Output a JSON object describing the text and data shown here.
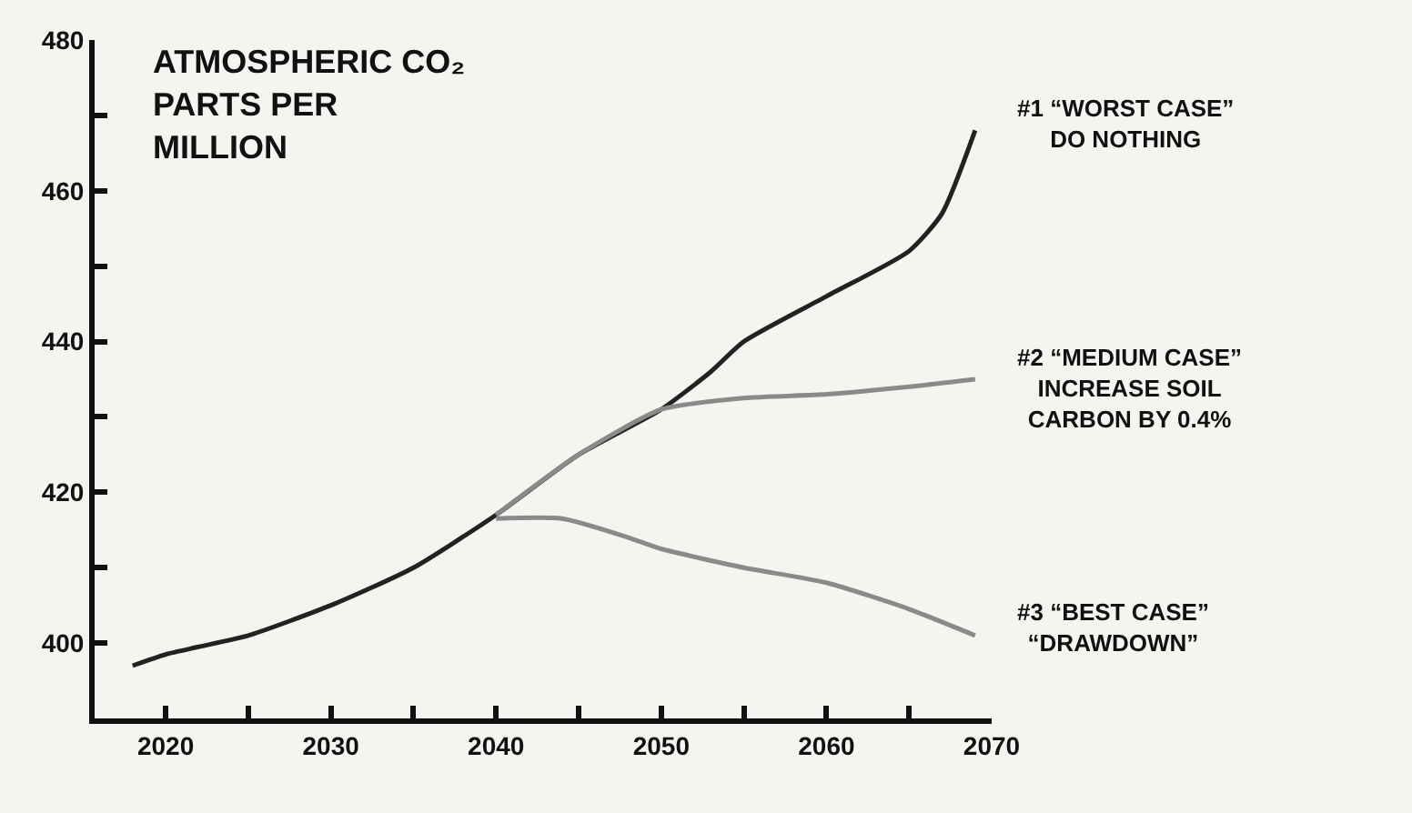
{
  "chart_data": {
    "type": "line",
    "title": "ATMOSPHERIC CO₂\nPARTS PER\nMILLION",
    "xlim": [
      2015.7,
      2070
    ],
    "ylim": [
      390,
      480
    ],
    "xticks": [
      2020,
      {
        "value": 2025,
        "label": null
      },
      2030,
      {
        "value": 2035,
        "label": null
      },
      2040,
      {
        "value": 2045,
        "label": null
      },
      2050,
      {
        "value": 2055,
        "label": null
      },
      2060,
      {
        "value": 2065,
        "label": null
      },
      2070
    ],
    "yticks": [
      400,
      {
        "value": 410,
        "label": null
      },
      420,
      {
        "value": 430,
        "label": null
      },
      440,
      {
        "value": 450,
        "label": null
      },
      460,
      {
        "value": 470,
        "label": null
      },
      480
    ],
    "grid": false,
    "legend": false,
    "series": [
      {
        "name": "#1 “WORST CASE”\nDO NOTHING",
        "color": "#222222",
        "x": [
          2018,
          2020,
          2022,
          2025,
          2030,
          2035,
          2040,
          2045,
          2050,
          2053,
          2055,
          2060,
          2065,
          2067,
          2069
        ],
        "values": [
          397,
          398.5,
          399.5,
          401,
          405,
          410,
          417,
          425,
          431,
          436,
          440,
          446,
          452,
          457,
          468
        ]
      },
      {
        "name": "#2 “MEDIUM CASE”\nINCREASE SOIL\nCARBON BY 0.4%",
        "color": "#8a8a8a",
        "x": [
          2040,
          2045,
          2050,
          2055,
          2060,
          2065,
          2069
        ],
        "values": [
          417,
          425,
          431,
          432.5,
          433,
          434,
          435
        ]
      },
      {
        "name": "#3 “BEST CASE”\n“DRAWDOWN”",
        "color": "#8a8a8a",
        "x": [
          2040,
          2044,
          2048,
          2050,
          2055,
          2060,
          2065,
          2069
        ],
        "values": [
          416.5,
          416.5,
          414,
          412.5,
          410,
          408,
          404.5,
          401
        ]
      }
    ]
  }
}
